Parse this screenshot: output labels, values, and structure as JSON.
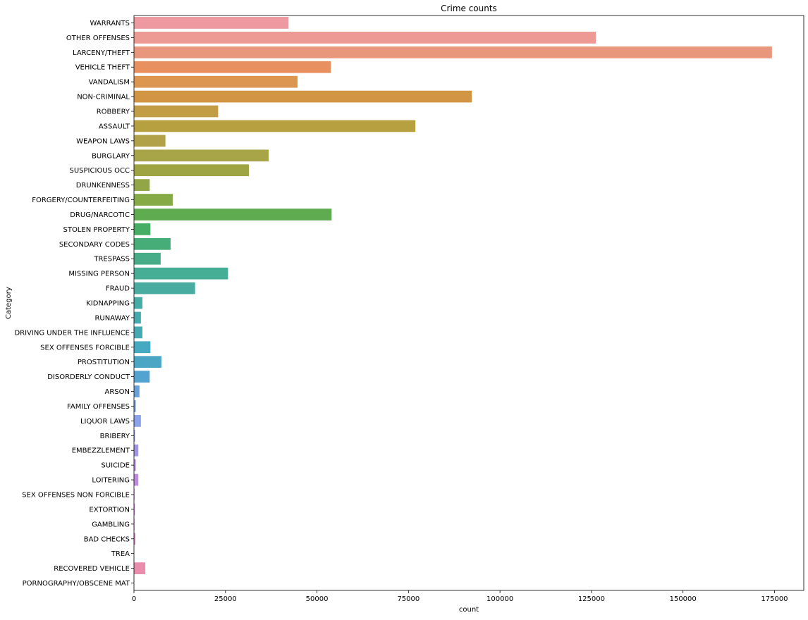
{
  "chart_data": {
    "type": "bar",
    "orientation": "horizontal",
    "title": "Crime counts",
    "xlabel": "count",
    "ylabel": "Category",
    "xlim": [
      0,
      183000
    ],
    "xticks": [
      0,
      25000,
      50000,
      75000,
      100000,
      125000,
      150000,
      175000
    ],
    "grid": false,
    "categories": [
      "WARRANTS",
      "OTHER OFFENSES",
      "LARCENY/THEFT",
      "VEHICLE THEFT",
      "VANDALISM",
      "NON-CRIMINAL",
      "ROBBERY",
      "ASSAULT",
      "WEAPON LAWS",
      "BURGLARY",
      "SUSPICIOUS OCC",
      "DRUNKENNESS",
      "FORGERY/COUNTERFEITING",
      "DRUG/NARCOTIC",
      "STOLEN PROPERTY",
      "SECONDARY CODES",
      "TRESPASS",
      "MISSING PERSON",
      "FRAUD",
      "KIDNAPPING",
      "RUNAWAY",
      "DRIVING UNDER THE INFLUENCE",
      "SEX OFFENSES FORCIBLE",
      "PROSTITUTION",
      "DISORDERLY CONDUCT",
      "ARSON",
      "FAMILY OFFENSES",
      "LIQUOR LAWS",
      "BRIBERY",
      "EMBEZZLEMENT",
      "SUICIDE",
      "LOITERING",
      "SEX OFFENSES NON FORCIBLE",
      "EXTORTION",
      "GAMBLING",
      "BAD CHECKS",
      "TREA",
      "RECOVERED VEHICLE",
      "PORNOGRAPHY/OBSCENE MAT"
    ],
    "values": [
      42200,
      126200,
      174300,
      53800,
      44700,
      92300,
      23000,
      76900,
      8600,
      36800,
      31400,
      4300,
      10600,
      54000,
      4500,
      10000,
      7300,
      25700,
      16700,
      2300,
      1900,
      2300,
      4500,
      7500,
      4300,
      1500,
      500,
      1900,
      300,
      1200,
      500,
      1200,
      150,
      250,
      150,
      400,
      10,
      3100,
      20
    ],
    "colors": [
      "#ee99a0",
      "#ec9a93",
      "#e9977c",
      "#e89060",
      "#dd9650",
      "#d29543",
      "#c29d45",
      "#b7a03f",
      "#b1a249",
      "#a7a548",
      "#9ea444",
      "#93a647",
      "#85aa46",
      "#5eab50",
      "#46ad65",
      "#46ad78",
      "#47ad88",
      "#45ae95",
      "#49aca0",
      "#46aca7",
      "#43abad",
      "#45a9b2",
      "#45aac1",
      "#4ba6c6",
      "#52a3cf",
      "#68a0da",
      "#7d9fe1",
      "#8aa2ea",
      "#9b9be9",
      "#a595e6",
      "#b590e4",
      "#c08be1",
      "#cd89de",
      "#d988dc",
      "#df88d3",
      "#e386c4",
      "#e78ab8",
      "#ea8cab",
      "#ea909d"
    ]
  }
}
